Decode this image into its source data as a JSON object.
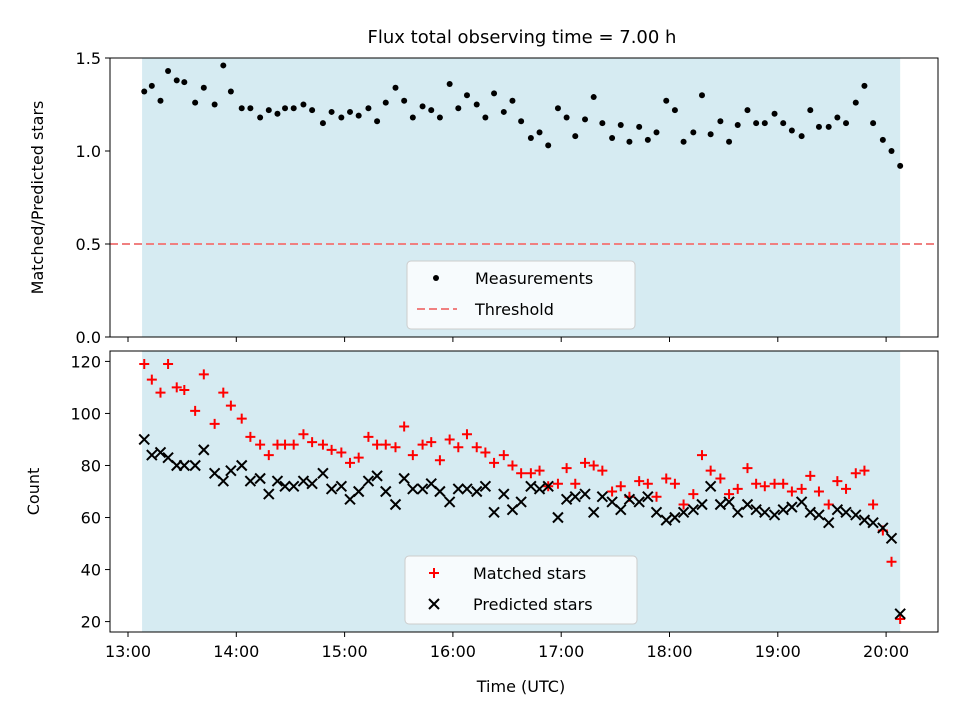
{
  "title": "Flux total observing time = 7.00 h",
  "chart_data": [
    {
      "type": "scatter",
      "ylabel": "Matched/Predicted stars",
      "ylim": [
        0,
        1.5
      ],
      "yticks": [
        "0.0",
        "0.5",
        "1.0",
        "1.5"
      ],
      "xlim": [
        12.8,
        20.5
      ],
      "shaded_span": [
        13.13,
        20.13
      ],
      "threshold": 0.5,
      "legend": [
        "Measurements",
        "Threshold"
      ],
      "legend_position": "lower-center",
      "series": [
        {
          "name": "Measurements",
          "x": [
            13.15,
            13.22,
            13.3,
            13.37,
            13.45,
            13.52,
            13.62,
            13.7,
            13.8,
            13.88,
            13.95,
            14.05,
            14.13,
            14.22,
            14.3,
            14.38,
            14.45,
            14.53,
            14.62,
            14.7,
            14.8,
            14.88,
            14.97,
            15.05,
            15.13,
            15.22,
            15.3,
            15.38,
            15.47,
            15.55,
            15.63,
            15.72,
            15.8,
            15.88,
            15.97,
            16.05,
            16.13,
            16.22,
            16.3,
            16.38,
            16.47,
            16.55,
            16.63,
            16.72,
            16.8,
            16.88,
            16.97,
            17.05,
            17.13,
            17.22,
            17.3,
            17.38,
            17.47,
            17.55,
            17.63,
            17.72,
            17.8,
            17.88,
            17.97,
            18.05,
            18.13,
            18.22,
            18.3,
            18.38,
            18.47,
            18.55,
            18.63,
            18.72,
            18.8,
            18.88,
            18.97,
            19.05,
            19.13,
            19.22,
            19.3,
            19.38,
            19.47,
            19.55,
            19.63,
            19.72,
            19.8,
            19.88,
            19.97,
            20.05,
            20.13
          ],
          "values": [
            1.32,
            1.35,
            1.27,
            1.43,
            1.38,
            1.37,
            1.26,
            1.34,
            1.25,
            1.46,
            1.32,
            1.23,
            1.23,
            1.18,
            1.22,
            1.2,
            1.23,
            1.23,
            1.25,
            1.22,
            1.15,
            1.21,
            1.18,
            1.21,
            1.19,
            1.23,
            1.16,
            1.26,
            1.34,
            1.27,
            1.18,
            1.24,
            1.22,
            1.18,
            1.36,
            1.23,
            1.3,
            1.25,
            1.18,
            1.31,
            1.21,
            1.27,
            1.16,
            1.07,
            1.1,
            1.03,
            1.23,
            1.18,
            1.08,
            1.17,
            1.29,
            1.15,
            1.07,
            1.14,
            1.05,
            1.13,
            1.06,
            1.1,
            1.27,
            1.22,
            1.05,
            1.1,
            1.3,
            1.09,
            1.16,
            1.05,
            1.14,
            1.22,
            1.15,
            1.15,
            1.2,
            1.15,
            1.11,
            1.08,
            1.22,
            1.13,
            1.13,
            1.18,
            1.15,
            1.26,
            1.35,
            1.15,
            1.06,
            1.0,
            0.92
          ]
        }
      ]
    },
    {
      "type": "scatter",
      "xlabel": "Time (UTC)",
      "ylabel": "Count",
      "ylim": [
        16,
        124
      ],
      "yticks": [
        "20",
        "40",
        "60",
        "80",
        "100",
        "120"
      ],
      "xlim": [
        12.8,
        20.5
      ],
      "xticks": [
        "13:00",
        "14:00",
        "15:00",
        "16:00",
        "17:00",
        "18:00",
        "19:00",
        "20:00"
      ],
      "shaded_span": [
        13.13,
        20.13
      ],
      "legend": [
        "Matched stars",
        "Predicted stars"
      ],
      "legend_position": "lower-center",
      "series": [
        {
          "name": "Matched stars",
          "x": [
            13.15,
            13.22,
            13.3,
            13.37,
            13.45,
            13.52,
            13.62,
            13.7,
            13.8,
            13.88,
            13.95,
            14.05,
            14.13,
            14.22,
            14.3,
            14.38,
            14.45,
            14.53,
            14.62,
            14.7,
            14.8,
            14.88,
            14.97,
            15.05,
            15.13,
            15.22,
            15.3,
            15.38,
            15.47,
            15.55,
            15.63,
            15.72,
            15.8,
            15.88,
            15.97,
            16.05,
            16.13,
            16.22,
            16.3,
            16.38,
            16.47,
            16.55,
            16.63,
            16.72,
            16.8,
            16.88,
            16.97,
            17.05,
            17.13,
            17.22,
            17.3,
            17.38,
            17.47,
            17.55,
            17.63,
            17.72,
            17.8,
            17.88,
            17.97,
            18.05,
            18.13,
            18.22,
            18.3,
            18.38,
            18.47,
            18.55,
            18.63,
            18.72,
            18.8,
            18.88,
            18.97,
            19.05,
            19.13,
            19.22,
            19.3,
            19.38,
            19.47,
            19.55,
            19.63,
            19.72,
            19.8,
            19.88,
            19.97,
            20.05,
            20.13
          ],
          "values": [
            119,
            113,
            108,
            119,
            110,
            109,
            101,
            115,
            96,
            108,
            103,
            98,
            91,
            88,
            84,
            88,
            88,
            88,
            92,
            89,
            88,
            86,
            85,
            81,
            83,
            91,
            88,
            88,
            87,
            95,
            84,
            88,
            89,
            82,
            90,
            87,
            92,
            87,
            85,
            81,
            84,
            80,
            77,
            77,
            78,
            72,
            73,
            79,
            73,
            81,
            80,
            78,
            70,
            72,
            68,
            74,
            73,
            68,
            75,
            73,
            65,
            69,
            84,
            78,
            75,
            69,
            71,
            79,
            73,
            72,
            73,
            73,
            70,
            71,
            76,
            70,
            65,
            74,
            71,
            77,
            78,
            65,
            55,
            43,
            21
          ]
        },
        {
          "name": "Predicted stars",
          "x": [
            13.15,
            13.22,
            13.3,
            13.37,
            13.45,
            13.52,
            13.62,
            13.7,
            13.8,
            13.88,
            13.95,
            14.05,
            14.13,
            14.22,
            14.3,
            14.38,
            14.45,
            14.53,
            14.62,
            14.7,
            14.8,
            14.88,
            14.97,
            15.05,
            15.13,
            15.22,
            15.3,
            15.38,
            15.47,
            15.55,
            15.63,
            15.72,
            15.8,
            15.88,
            15.97,
            16.05,
            16.13,
            16.22,
            16.3,
            16.38,
            16.47,
            16.55,
            16.63,
            16.72,
            16.8,
            16.88,
            16.97,
            17.05,
            17.13,
            17.22,
            17.3,
            17.38,
            17.47,
            17.55,
            17.63,
            17.72,
            17.8,
            17.88,
            17.97,
            18.05,
            18.13,
            18.22,
            18.3,
            18.38,
            18.47,
            18.55,
            18.63,
            18.72,
            18.8,
            18.88,
            18.97,
            19.05,
            19.13,
            19.22,
            19.3,
            19.38,
            19.47,
            19.55,
            19.63,
            19.72,
            19.8,
            19.88,
            19.97,
            20.05,
            20.13
          ],
          "values": [
            90,
            84,
            85,
            83,
            80,
            80,
            80,
            86,
            77,
            74,
            78,
            80,
            74,
            75,
            69,
            74,
            72,
            72,
            74,
            73,
            77,
            71,
            72,
            67,
            70,
            74,
            76,
            70,
            65,
            75,
            71,
            71,
            73,
            70,
            66,
            71,
            71,
            70,
            72,
            62,
            69,
            63,
            66,
            72,
            71,
            72,
            60,
            67,
            68,
            69,
            62,
            68,
            66,
            63,
            67,
            66,
            68,
            62,
            59,
            60,
            62,
            63,
            65,
            72,
            65,
            66,
            62,
            65,
            63,
            62,
            61,
            63,
            64,
            66,
            62,
            61,
            58,
            63,
            62,
            61,
            59,
            58,
            56,
            52,
            23
          ]
        }
      ]
    }
  ]
}
